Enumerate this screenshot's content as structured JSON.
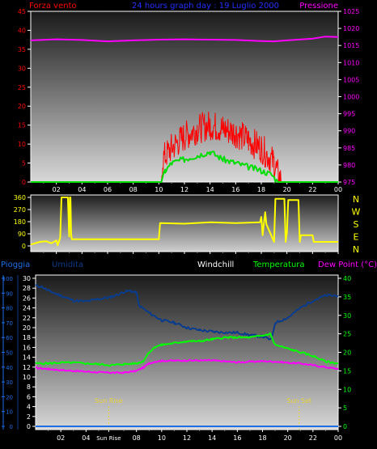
{
  "colors": {
    "background": "#000000",
    "wind": "#ff0000",
    "wind_avg": "#00dd00",
    "pressure": "#ff00ff",
    "direction": "#ffff00",
    "rain": "#1e6ee6",
    "humidity": "#0a3c8c",
    "windchill": "#ffffff",
    "temperature": "#00ff00",
    "dewpoint": "#ff00ff",
    "sun": "#e6d23c"
  },
  "chart_data": [
    {
      "type": "line",
      "title": "24 hours graph day : 19 Luglio 2000",
      "left_axis_label": "Forza vento",
      "right_axis_label": "Pressione",
      "y_left": {
        "min": 0,
        "max": 45,
        "ticks": [
          "0",
          "5",
          "10",
          "15",
          "20",
          "25",
          "30",
          "35",
          "40",
          "45"
        ]
      },
      "y_right": {
        "min": 975,
        "max": 1025,
        "ticks": [
          "975",
          "980",
          "985",
          "990",
          "995",
          "1000",
          "1005",
          "1010",
          "1015",
          "1020",
          "1025"
        ]
      },
      "x_ticks": [
        "02",
        "04",
        "06",
        "08",
        "10",
        "12",
        "14",
        "16",
        "18",
        "20",
        "22",
        "00"
      ],
      "series": [
        {
          "name": "Forza vento",
          "axis": "left",
          "x": [
            0,
            10.2,
            10.3,
            11,
            12,
            13,
            14,
            15,
            16,
            17,
            18,
            19,
            19.3,
            19.6,
            24
          ],
          "y": [
            0,
            0,
            6,
            9,
            12,
            14,
            15,
            14,
            13,
            11,
            9,
            5,
            2,
            0,
            0
          ]
        },
        {
          "axis": "left",
          "x": [
            0,
            10.2,
            10.5,
            11,
            12,
            13,
            14,
            15,
            16,
            17,
            18,
            18.8,
            19.3,
            24
          ],
          "y": [
            0,
            0,
            3,
            5,
            6,
            7,
            8,
            6,
            5,
            4,
            3,
            2,
            0,
            0
          ]
        },
        {
          "name": "Pressione",
          "axis": "right",
          "x": [
            0,
            2,
            4,
            6,
            8,
            10,
            12,
            14,
            16,
            18,
            19,
            20,
            22,
            23,
            24
          ],
          "y": [
            1016.5,
            1016.8,
            1016.6,
            1016.2,
            1016.5,
            1016.7,
            1016.8,
            1016.7,
            1016.6,
            1016.3,
            1016.2,
            1016.5,
            1017.0,
            1017.6,
            1017.5
          ]
        }
      ]
    },
    {
      "type": "line",
      "y_ticks": [
        "0",
        "90",
        "180",
        "270",
        "360"
      ],
      "direction_labels": [
        "N",
        "W",
        "S",
        "E",
        "N"
      ],
      "x_ticks": [
        "02",
        "04",
        "06",
        "08",
        "10",
        "12",
        "14",
        "16",
        "18",
        "20",
        "22",
        "00"
      ],
      "y_range": [
        0,
        360
      ],
      "series": [
        {
          "x": [
            0,
            0.7,
            1.2,
            1.6,
            2.0,
            2.1,
            2.3,
            2.4,
            2.9,
            3.0,
            3.05,
            3.1,
            3.15,
            3.2,
            5,
            8,
            10.0,
            10.1,
            12,
            14,
            16,
            17.9,
            18.0,
            18.1,
            18.3,
            18.4,
            19.0,
            19.1,
            19.8,
            19.9,
            20.0,
            20.1,
            20.9,
            21.0,
            21.1,
            22.0,
            22.1,
            24
          ],
          "y": [
            10,
            30,
            35,
            20,
            40,
            5,
            60,
            360,
            360,
            70,
            360,
            360,
            90,
            50,
            50,
            50,
            50,
            170,
            165,
            175,
            170,
            175,
            215,
            80,
            250,
            160,
            30,
            350,
            350,
            30,
            100,
            340,
            340,
            30,
            80,
            80,
            30,
            30
          ]
        }
      ]
    },
    {
      "type": "line",
      "title_left": "Pioggia",
      "labels": [
        "Umidita",
        "Windchill",
        "Temperatura",
        "Dew Point (°C)"
      ],
      "y_rain": {
        "min": 0,
        "max": 100,
        "ticks": [
          "0",
          "10",
          "20",
          "30",
          "40",
          "50",
          "60",
          "70",
          "80",
          "90",
          "100"
        ]
      },
      "y_humidity": {
        "min": 0,
        "max": 30,
        "ticks": [
          "0",
          "2",
          "4",
          "6",
          "8",
          "10",
          "12",
          "14",
          "16",
          "18",
          "20",
          "22",
          "24",
          "26",
          "28",
          "30"
        ]
      },
      "y_temp": {
        "min": 0,
        "max": 40,
        "ticks": [
          "0",
          "5",
          "10",
          "15",
          "20",
          "25",
          "30",
          "35",
          "40"
        ]
      },
      "x_ticks": [
        "02",
        "04",
        "Sun Rise",
        "08",
        "10",
        "12",
        "14",
        "16",
        "18",
        "20",
        "22",
        "00"
      ],
      "sun_rise_label": "Sun Rise",
      "sun_set_label": "Sun Set",
      "sun_rise_hour": 5.8,
      "sun_set_hour": 20.9,
      "series": [
        {
          "name": "Pioggia",
          "axis": "rain",
          "x": [
            0,
            24
          ],
          "y": [
            0,
            0
          ]
        },
        {
          "name": "Umidita",
          "axis": "humidity",
          "x": [
            0,
            0.5,
            1,
            2,
            3,
            4,
            5,
            6,
            7,
            7.5,
            8,
            8.2,
            9,
            10,
            11,
            12,
            13,
            14,
            15,
            16,
            17,
            18,
            18.7,
            19,
            20,
            21,
            22,
            23,
            24
          ],
          "y": [
            28.5,
            28.3,
            27.5,
            26.5,
            25.5,
            25.3,
            25.8,
            26.2,
            27.2,
            27.5,
            27,
            24.5,
            23,
            21.5,
            21,
            20,
            19.5,
            19.2,
            19,
            19,
            18.5,
            18.2,
            17.5,
            21,
            22,
            24,
            25.5,
            26.5,
            26.5
          ]
        },
        {
          "name": "Windchill",
          "axis": "temp",
          "x": [
            0,
            24
          ],
          "y": [
            0,
            0
          ]
        },
        {
          "name": "Temperatura",
          "axis": "temp",
          "x": [
            0,
            1,
            2,
            3,
            4,
            5,
            6,
            7,
            8,
            8.5,
            9,
            9.5,
            10,
            11,
            12,
            13,
            14,
            15,
            16,
            17,
            18,
            18.6,
            19,
            20,
            21,
            22,
            23,
            24
          ],
          "y": [
            17,
            17,
            17.2,
            17.2,
            17,
            16.8,
            16.5,
            16.8,
            17,
            17.5,
            20,
            21.5,
            22,
            22.5,
            23,
            23,
            23.5,
            24,
            24,
            24,
            24.5,
            25,
            22,
            21,
            20,
            19,
            17.5,
            17
          ]
        },
        {
          "name": "Dew Point (°C)",
          "axis": "temp",
          "x": [
            0,
            1,
            2,
            3,
            4,
            5,
            6,
            7,
            8,
            8.5,
            9,
            9.5,
            10,
            12,
            14,
            16,
            18,
            19,
            20,
            21,
            22,
            23,
            24
          ],
          "y": [
            15.8,
            15.5,
            15.2,
            15,
            14.8,
            14.6,
            14.5,
            14.5,
            15,
            15.8,
            17,
            17.5,
            17.7,
            17.8,
            17.8,
            17.3,
            17.6,
            17.5,
            17.2,
            17,
            16.5,
            16,
            15.5
          ]
        }
      ]
    }
  ]
}
